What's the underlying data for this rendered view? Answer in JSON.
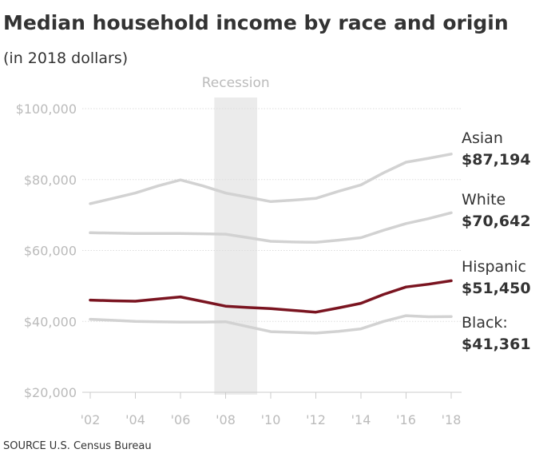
{
  "header": {
    "title": "Median household income by race and origin",
    "subtitle": "(in 2018 dollars)"
  },
  "footer": {
    "source": "SOURCE U.S. Census Bureau"
  },
  "colors": {
    "highlight": "#7a1420",
    "muted": "#d2d2d2",
    "shade": "#ebebeb",
    "grid": "#dddddd"
  },
  "chart_data": {
    "type": "line",
    "title": "Median household income by race and origin",
    "subtitle": "(in 2018 dollars)",
    "x": [
      2002,
      2003,
      2004,
      2005,
      2006,
      2007,
      2008,
      2009,
      2010,
      2011,
      2012,
      2013,
      2014,
      2015,
      2016,
      2017,
      2018
    ],
    "x_tick_labels": [
      "'02",
      "'04",
      "'06",
      "'08",
      "'10",
      "'12",
      "'14",
      "'16",
      "'18"
    ],
    "x_ticks": [
      2002,
      2004,
      2006,
      2008,
      2010,
      2012,
      2014,
      2016,
      2018
    ],
    "ylim": [
      20000,
      100000
    ],
    "y_ticks": [
      20000,
      40000,
      60000,
      80000,
      100000
    ],
    "y_tick_labels": [
      "$20,000",
      "$40,000",
      "$60,000",
      "$80,000",
      "$100,000"
    ],
    "grid": true,
    "shaded_region": {
      "label": "Recession",
      "x_start": 2007.5,
      "x_end": 2009.4
    },
    "series": [
      {
        "name": "Asian",
        "value_label": "$87,194",
        "highlight": false,
        "values": [
          73200,
          74700,
          76200,
          78200,
          79900,
          78200,
          76200,
          75000,
          73800,
          74200,
          74700,
          76700,
          78500,
          81900,
          84900,
          86000,
          87194
        ]
      },
      {
        "name": "White",
        "value_label": "$70,642",
        "highlight": false,
        "values": [
          65000,
          64900,
          64800,
          64800,
          64800,
          64700,
          64600,
          63600,
          62600,
          62400,
          62300,
          62900,
          63600,
          65700,
          67600,
          69000,
          70642
        ]
      },
      {
        "name": "Hispanic",
        "value_label": "$51,450",
        "highlight": true,
        "values": [
          46000,
          45800,
          45700,
          46300,
          46900,
          45600,
          44300,
          43900,
          43600,
          43100,
          42600,
          43800,
          45100,
          47600,
          49700,
          50500,
          51450
        ]
      },
      {
        "name": "Black:",
        "value_label": "$41,361",
        "highlight": false,
        "values": [
          40600,
          40300,
          40000,
          39900,
          39800,
          39800,
          39900,
          38500,
          37100,
          36900,
          36700,
          37200,
          37900,
          40000,
          41600,
          41300,
          41361
        ]
      }
    ]
  }
}
